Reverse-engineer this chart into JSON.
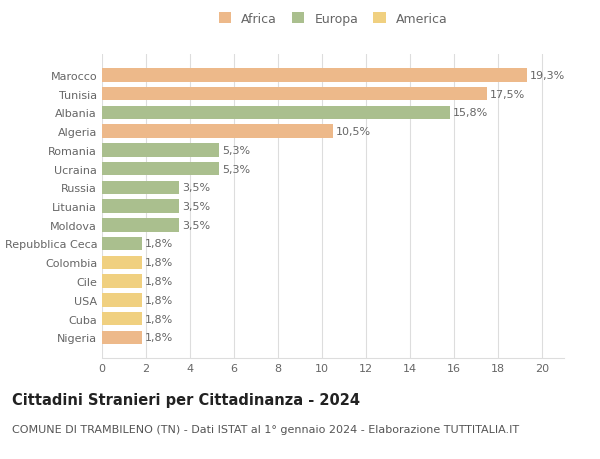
{
  "categories": [
    "Marocco",
    "Tunisia",
    "Albania",
    "Algeria",
    "Romania",
    "Ucraina",
    "Russia",
    "Lituania",
    "Moldova",
    "Repubblica Ceca",
    "Colombia",
    "Cile",
    "USA",
    "Cuba",
    "Nigeria"
  ],
  "values": [
    19.3,
    17.5,
    15.8,
    10.5,
    5.3,
    5.3,
    3.5,
    3.5,
    3.5,
    1.8,
    1.8,
    1.8,
    1.8,
    1.8,
    1.8
  ],
  "labels": [
    "19,3%",
    "17,5%",
    "15,8%",
    "10,5%",
    "5,3%",
    "5,3%",
    "3,5%",
    "3,5%",
    "3,5%",
    "1,8%",
    "1,8%",
    "1,8%",
    "1,8%",
    "1,8%",
    "1,8%"
  ],
  "continents": [
    "Africa",
    "Africa",
    "Europa",
    "Africa",
    "Europa",
    "Europa",
    "Europa",
    "Europa",
    "Europa",
    "Europa",
    "America",
    "America",
    "America",
    "America",
    "Africa"
  ],
  "colors": {
    "Africa": "#EDB98A",
    "Europa": "#AABF8E",
    "America": "#F0D080"
  },
  "legend_items": [
    "Africa",
    "Europa",
    "America"
  ],
  "legend_colors": [
    "#EDB98A",
    "#AABF8E",
    "#F0D080"
  ],
  "title": "Cittadini Stranieri per Cittadinanza - 2024",
  "subtitle": "COMUNE DI TRAMBILENO (TN) - Dati ISTAT al 1° gennaio 2024 - Elaborazione TUTTITALIA.IT",
  "xlim": [
    0,
    21
  ],
  "xticks": [
    0,
    2,
    4,
    6,
    8,
    10,
    12,
    14,
    16,
    18,
    20
  ],
  "background_color": "#ffffff",
  "grid_color": "#dddddd",
  "bar_height": 0.72,
  "label_fontsize": 8,
  "tick_fontsize": 8,
  "title_fontsize": 10.5,
  "subtitle_fontsize": 8
}
